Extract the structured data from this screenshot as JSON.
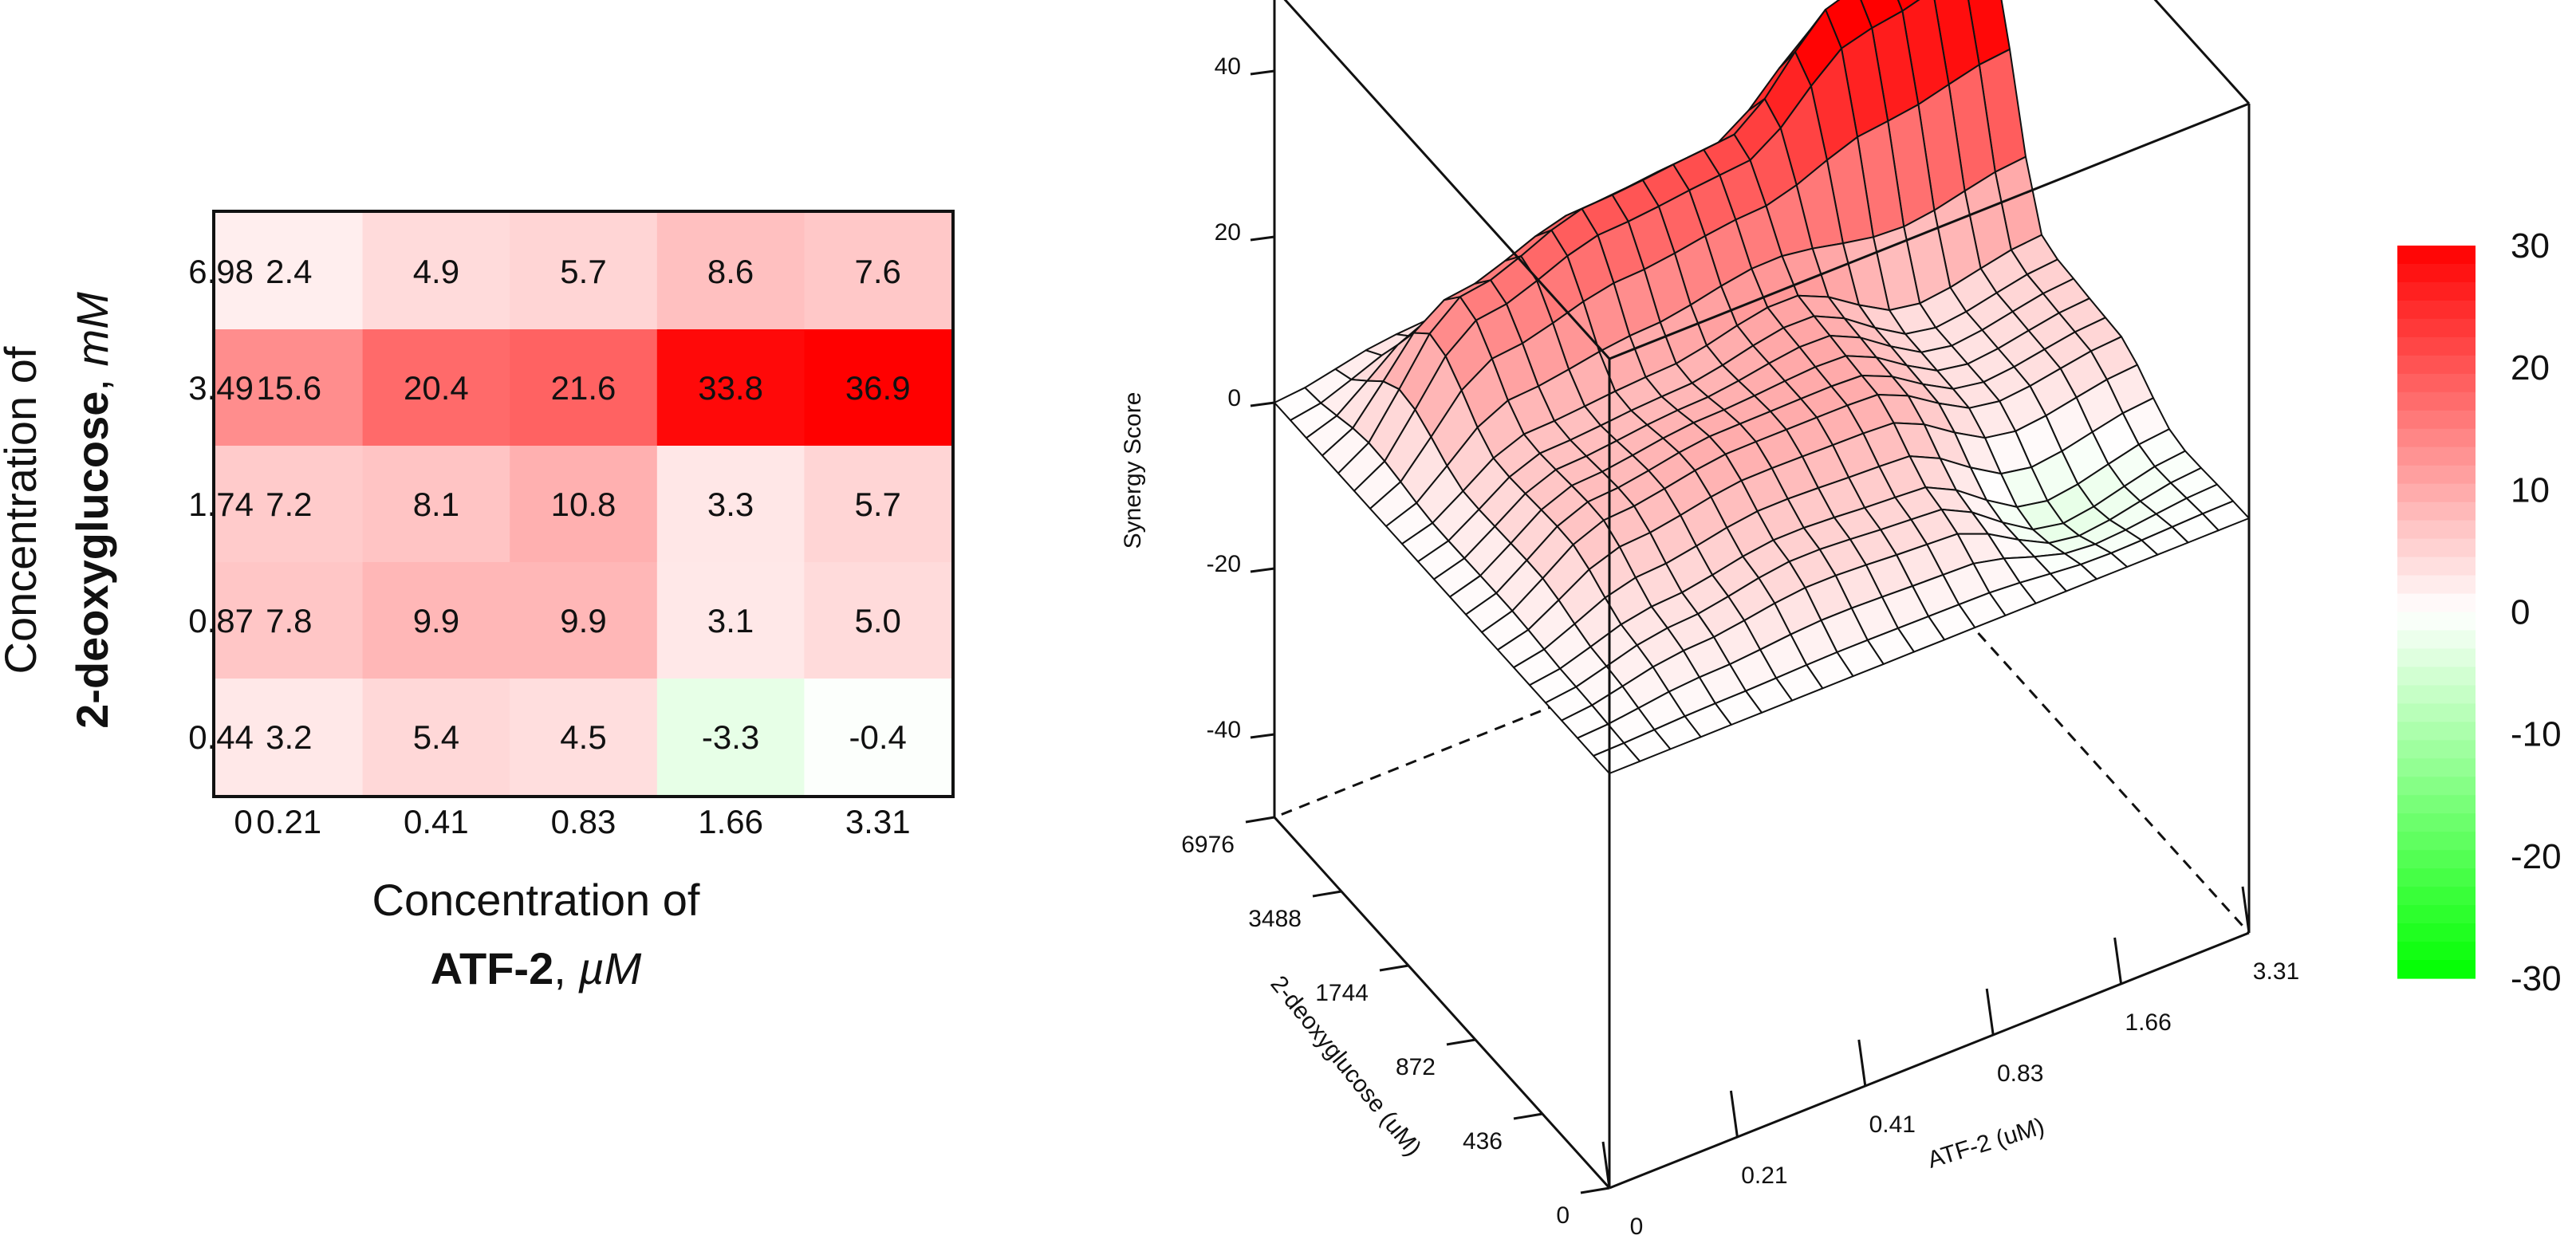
{
  "chart_data": [
    {
      "type": "heatmap",
      "x_label_pre": "Concentration of",
      "x_label_bold": "ATF-2",
      "x_label_sep": ", ",
      "x_label_unit": "µM",
      "y_label_pre": "Concentration of",
      "y_label_bold": "2-deoxyglucose",
      "y_label_sep": ", ",
      "y_label_unit": "mM",
      "origin_label": "0",
      "x_categories": [
        "0.21",
        "0.41",
        "0.83",
        "1.66",
        "3.31"
      ],
      "y_categories": [
        "6.98",
        "3.49",
        "1.74",
        "0.87",
        "0.44"
      ],
      "values": [
        [
          2.4,
          4.9,
          5.7,
          8.6,
          7.6
        ],
        [
          15.6,
          20.4,
          21.6,
          33.8,
          36.9
        ],
        [
          7.2,
          8.1,
          10.8,
          3.3,
          5.7
        ],
        [
          7.8,
          9.9,
          9.9,
          3.1,
          5.0
        ],
        [
          3.2,
          5.4,
          4.5,
          -3.3,
          -0.4
        ]
      ],
      "value_labels": [
        [
          "2.4",
          "4.9",
          "5.7",
          "8.6",
          "7.6"
        ],
        [
          "15.6",
          "20.4",
          "21.6",
          "33.8",
          "36.9"
        ],
        [
          "7.2",
          "8.1",
          "10.8",
          "3.3",
          "5.7"
        ],
        [
          "7.8",
          "9.9",
          "9.9",
          "3.1",
          "5.0"
        ],
        [
          "3.2",
          "5.4",
          "4.5",
          "-3.3",
          "-0.4"
        ]
      ],
      "color_range": [
        -35,
        35
      ]
    },
    {
      "type": "surface3d",
      "zlabel": "Synergy Score",
      "xlabel": "ATF-2 (uM)",
      "ylabel": "2-deoxyglucose (uM)",
      "z_ticks": [
        "40",
        "20",
        "0",
        "-20",
        "-40"
      ],
      "x_ticks": [
        "0",
        "0.21",
        "0.41",
        "0.83",
        "1.66",
        "3.31"
      ],
      "y_ticks": [
        "0",
        "436",
        "872",
        "1744",
        "3488",
        "6976"
      ],
      "z_range": [
        -50,
        50
      ],
      "x_levels": [
        0,
        0.21,
        0.41,
        0.83,
        1.66,
        3.31
      ],
      "y_levels": [
        0,
        436,
        872,
        1744,
        3488,
        6976
      ],
      "synergy_matrix": [
        [
          0,
          0,
          0,
          0,
          0,
          0
        ],
        [
          0,
          3.2,
          5.4,
          4.5,
          -3.3,
          -0.4
        ],
        [
          0,
          7.8,
          9.9,
          9.9,
          3.1,
          5.0
        ],
        [
          0,
          7.2,
          8.1,
          10.8,
          3.3,
          5.7
        ],
        [
          0,
          15.6,
          20.4,
          21.6,
          33.8,
          36.9
        ],
        [
          0,
          2.4,
          4.9,
          5.7,
          8.6,
          7.6
        ]
      ],
      "colorbar_ticks": [
        "30",
        "20",
        "10",
        "0",
        "-10",
        "-20",
        "-30"
      ],
      "colorbar_values": [
        30,
        20,
        10,
        0,
        -10,
        -20,
        -30
      ],
      "colorbar_range": [
        -30,
        30
      ]
    }
  ]
}
